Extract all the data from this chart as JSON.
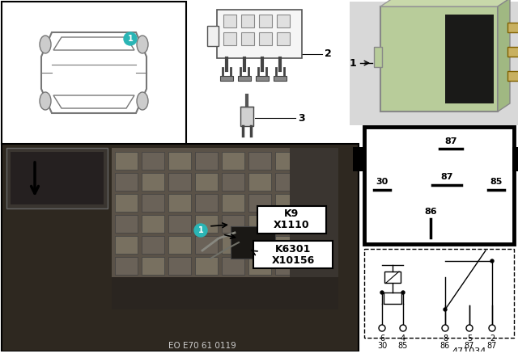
{
  "bg_color": "#ffffff",
  "teal_color": "#2ab5b5",
  "car_line_color": "#777777",
  "relay_green": "#b8cc9a",
  "relay_green_dark": "#a0b882",
  "relay_green_mid": "#c8d8aa",
  "relay_metal": "#b0a060",
  "relay_dark": "#2a2a2a",
  "terminal_bg": "#ffffff",
  "terminal_border": "#000000",
  "schematic_bg": "#ffffff",
  "photo_dark": "#3a3530",
  "photo_mid": "#6a6560",
  "photo_light": "#8a8070",
  "photo_panel": "#7a7060",
  "eo_label": "EO E70 61 0119",
  "part_num": "471034",
  "k9": "K9",
  "x1110": "X1110",
  "k6301": "K6301",
  "x10156": "X10156",
  "label1": "1",
  "label2": "2",
  "label3": "3"
}
